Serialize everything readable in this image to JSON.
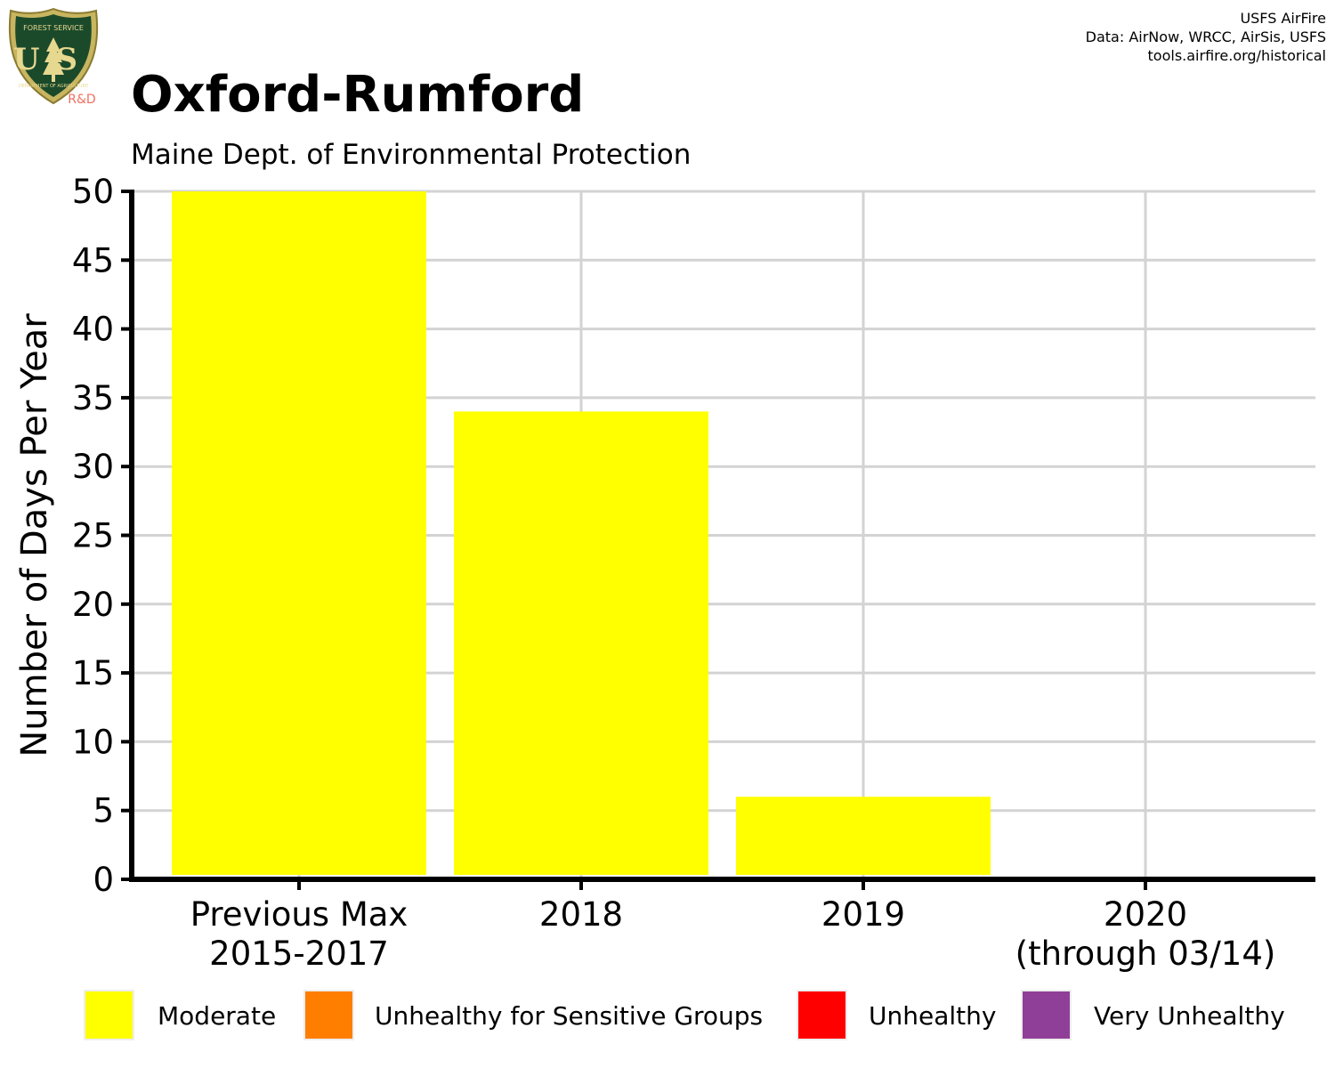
{
  "logo": {
    "top_text": "FOREST SERVICE",
    "letters": "US",
    "bottom_text": "DEPARTMENT OF AGRICULTURE",
    "tag": "R&D"
  },
  "credits": [
    "USFS AirFire",
    "Data: AirNow, WRCC, AirSis, USFS",
    "tools.airfire.org/historical"
  ],
  "chart_data": {
    "type": "bar",
    "title": "Oxford-Rumford",
    "subtitle": "Maine Dept. of Environmental Protection",
    "xlabel": "",
    "ylabel": "Number of Days Per Year",
    "categories": [
      [
        "Previous Max",
        "2015-2017"
      ],
      [
        "2018"
      ],
      [
        "2019"
      ],
      [
        "2020",
        "(through 03/14)"
      ]
    ],
    "series": [
      {
        "name": "Moderate",
        "values": [
          50,
          34,
          6,
          0
        ]
      },
      {
        "name": "Unhealthy for Sensitive Groups",
        "values": [
          0,
          0,
          0,
          0
        ]
      },
      {
        "name": "Unhealthy",
        "values": [
          0,
          0,
          0,
          0
        ]
      },
      {
        "name": "Very Unhealthy",
        "values": [
          0,
          0,
          0,
          0
        ]
      }
    ],
    "ylim": [
      0,
      50
    ],
    "yticks": [
      0,
      5,
      10,
      15,
      20,
      25,
      30,
      35,
      40,
      45,
      50
    ],
    "grid": true,
    "legend_position": "bottom",
    "colors": {
      "Moderate": "#ffff00",
      "Unhealthy for Sensitive Groups": "#ff7e00",
      "Unhealthy": "#ff0000",
      "Very Unhealthy": "#8f3f97",
      "grid": "#d3d3d3",
      "axis": "#000000"
    }
  }
}
